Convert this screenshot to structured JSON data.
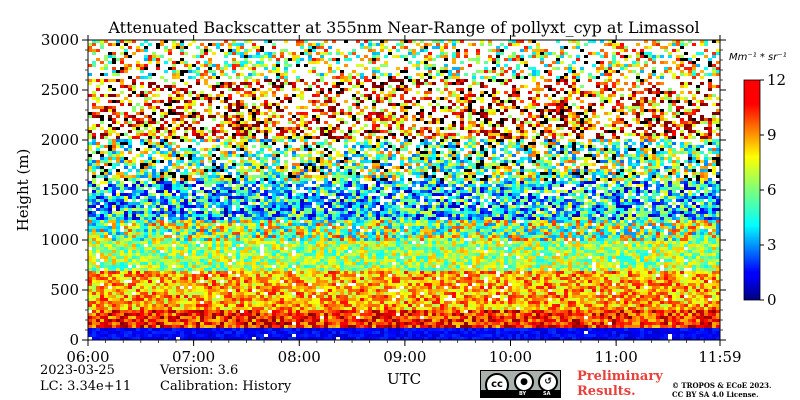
{
  "chart_data": {
    "type": "heatmap",
    "title": "Attenuated Backscatter at 355nm Near-Range of pollyxt_cyp at Limassol",
    "xlabel": "UTC",
    "ylabel": "Height (m)",
    "x_ticks": [
      "06:00",
      "07:00",
      "08:00",
      "09:00",
      "10:00",
      "11:00",
      "11:59"
    ],
    "x_range": [
      "06:00",
      "11:59"
    ],
    "y_ticks": [
      0,
      500,
      1000,
      1500,
      2000,
      2500,
      3000
    ],
    "ylim": [
      0,
      3000
    ],
    "colorbar": {
      "unit": "Mm^-1*sr^-1",
      "unit_display": "Mm⁻¹ * sr⁻¹",
      "ticks": [
        0,
        3,
        6,
        9,
        12
      ],
      "range": [
        0,
        12
      ],
      "colormap": "jet"
    },
    "layers": [
      {
        "height_range": [
          0,
          120
        ],
        "backscatter": 1.5,
        "note": "near-range overlap region (blue)"
      },
      {
        "height_range": [
          120,
          300
        ],
        "backscatter": 10
      },
      {
        "height_range": [
          300,
          700
        ],
        "backscatter": 8.5
      },
      {
        "height_range": [
          700,
          1200
        ],
        "backscatter": 6.5
      },
      {
        "height_range": [
          1200,
          1600
        ],
        "backscatter": 4
      },
      {
        "height_range": [
          1600,
          2000
        ],
        "backscatter": 6
      },
      {
        "height_range": [
          2000,
          2600
        ],
        "backscatter": 9.5
      },
      {
        "height_range": [
          2600,
          3000
        ],
        "backscatter": 7
      }
    ],
    "grid": false
  },
  "footer": {
    "date": "2023-03-25",
    "lc": "LC: 3.34e+11",
    "version": "Version: 3.6",
    "calibration": "Calibration: History",
    "preliminary_line1": "Preliminary",
    "preliminary_line2": "Results.",
    "copyright_line1": "© TROPOS & ECoE 2023.",
    "copyright_line2": "CC BY SA 4.0 License.",
    "license_badge": {
      "symbols": [
        "cc",
        "by",
        "sa"
      ],
      "labels": [
        "BY",
        "SA"
      ]
    }
  },
  "colors": {
    "preliminary": "#e8403a",
    "badge_bg": "#a9b1ac"
  }
}
